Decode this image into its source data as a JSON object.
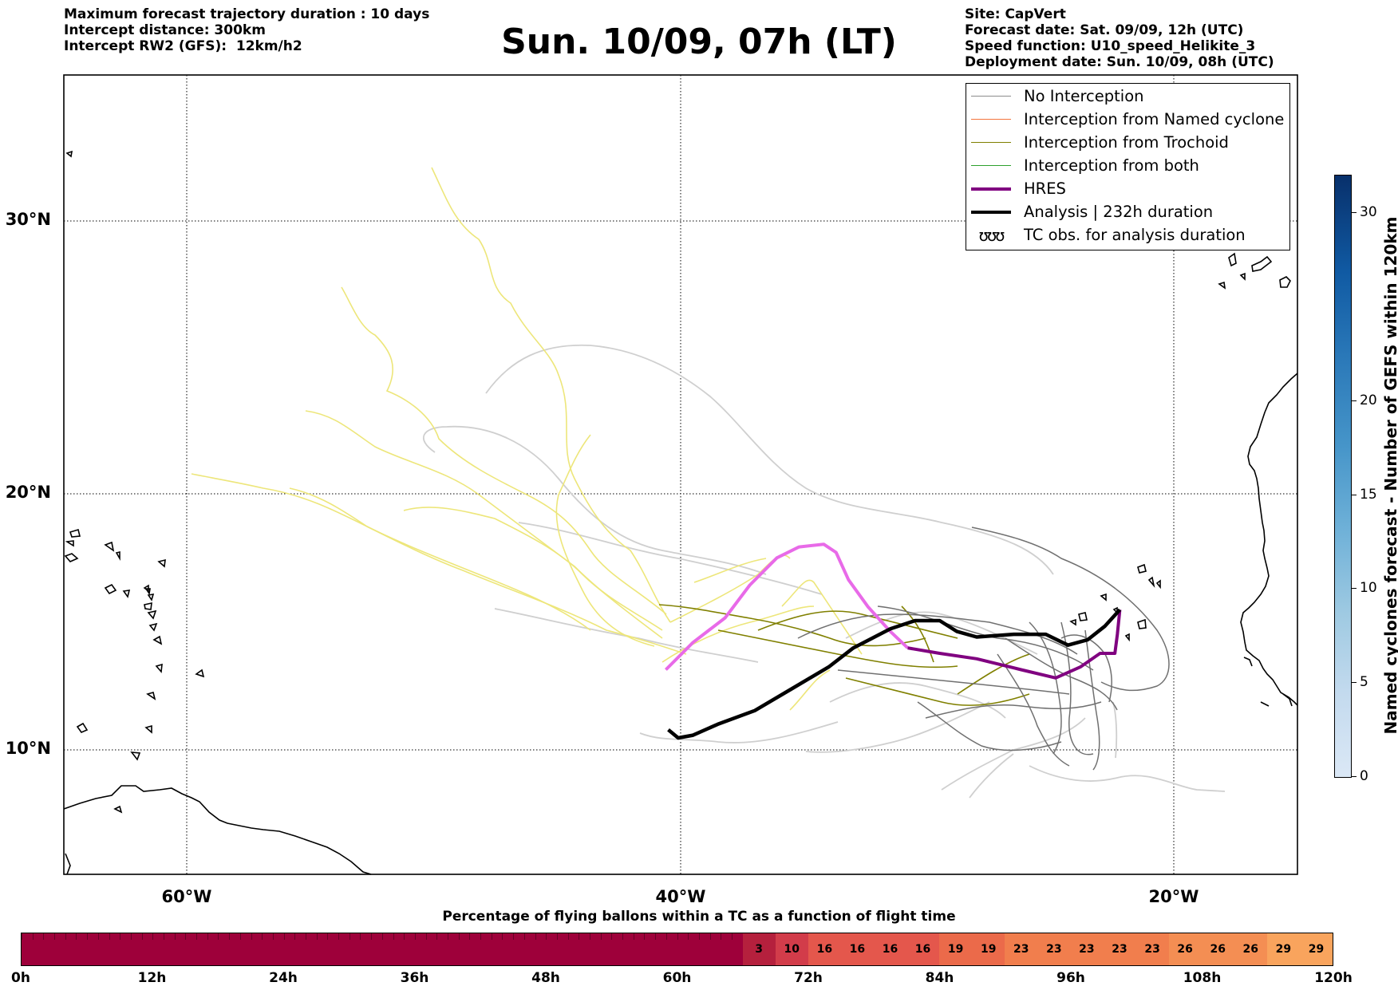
{
  "header": {
    "left": [
      "Maximum forecast trajectory duration : 10 days",
      "Intercept distance: 300km",
      "Intercept RW2 (GFS):  12km/h2"
    ],
    "title": "Sun. 10/09, 07h (LT)",
    "right": [
      "Site: CapVert",
      "Forecast date: Sat. 09/09, 12h (UTC)",
      "Speed function: U10_speed_Helikite_3",
      "Deployment date: Sun. 10/09, 08h (UTC)"
    ]
  },
  "map": {
    "lat_labels": [
      "30°N",
      "20°N",
      "10°N"
    ],
    "lon_labels": [
      "60°W",
      "40°W",
      "20°W"
    ],
    "extent": {
      "lon": [
        -65,
        -15
      ],
      "lat": [
        5,
        34.3
      ]
    }
  },
  "legend": {
    "items": [
      {
        "label": "No Interception",
        "color": "#8c8c8c",
        "style": "thin"
      },
      {
        "label": "Interception from Named cyclone",
        "color": "#f4743c",
        "style": "thin"
      },
      {
        "label": "Interception from Trochoid",
        "color": "#808000",
        "style": "thin"
      },
      {
        "label": "Interception from both",
        "color": "#2ca02c",
        "style": "thin"
      },
      {
        "label": "HRES",
        "color": "#800080",
        "style": "thick"
      },
      {
        "label": "Analysis | 232h duration",
        "color": "#000000",
        "style": "thick"
      },
      {
        "label": "TC obs. for analysis duration",
        "icon": "tc-symbol-icon",
        "symbol": "ʊʊʊ"
      }
    ]
  },
  "right_colorbar": {
    "title": "Named cyclones forecast - Number of GEFS within 120km",
    "ticks": [
      "0",
      "5",
      "10",
      "15",
      "20",
      "30"
    ],
    "tick_values": [
      0,
      5,
      10,
      15,
      20,
      30
    ],
    "max": 32
  },
  "bottom_bar": {
    "title": "Percentage of flying ballons within a TC as a function of flight time",
    "hour_labels": [
      "0h",
      "12h",
      "24h",
      "36h",
      "48h",
      "60h",
      "72h",
      "84h",
      "96h",
      "108h",
      "120h"
    ],
    "hours_max": 120,
    "segment_hours": 3,
    "segments": [
      {
        "start": 66,
        "label": "3",
        "color": "#b5203d"
      },
      {
        "start": 69,
        "label": "10",
        "color": "#d23c4a"
      },
      {
        "start": 72,
        "label": "16",
        "color": "#e4574c"
      },
      {
        "start": 75,
        "label": "16",
        "color": "#e4574c"
      },
      {
        "start": 78,
        "label": "16",
        "color": "#e4574c"
      },
      {
        "start": 81,
        "label": "16",
        "color": "#e4574c"
      },
      {
        "start": 84,
        "label": "19",
        "color": "#eb6a4a"
      },
      {
        "start": 87,
        "label": "19",
        "color": "#eb6a4a"
      },
      {
        "start": 90,
        "label": "23",
        "color": "#f17e4d"
      },
      {
        "start": 93,
        "label": "23",
        "color": "#f17e4d"
      },
      {
        "start": 96,
        "label": "23",
        "color": "#f17e4d"
      },
      {
        "start": 99,
        "label": "23",
        "color": "#f17e4d"
      },
      {
        "start": 102,
        "label": "23",
        "color": "#f17e4d"
      },
      {
        "start": 105,
        "label": "26",
        "color": "#f48e53"
      },
      {
        "start": 108,
        "label": "26",
        "color": "#f48e53"
      },
      {
        "start": 111,
        "label": "26",
        "color": "#f48e53"
      },
      {
        "start": 114,
        "label": "29",
        "color": "#f9a45d"
      },
      {
        "start": 117,
        "label": "29",
        "color": "#f9a45d"
      }
    ],
    "base_color": "#9e003a"
  },
  "tracks": {
    "analysis": {
      "color": "#000000",
      "points": [
        [
          -40.5,
          10.3
        ],
        [
          -40.1,
          10.0
        ],
        [
          -39.5,
          10.1
        ],
        [
          -38.5,
          10.5
        ],
        [
          -37.0,
          11.0
        ],
        [
          -35.5,
          11.8
        ],
        [
          -34.0,
          12.6
        ],
        [
          -33.0,
          13.3
        ],
        [
          -31.5,
          14.0
        ],
        [
          -30.5,
          14.3
        ],
        [
          -29.5,
          14.3
        ],
        [
          -28.8,
          13.9
        ],
        [
          -28.0,
          13.7
        ],
        [
          -26.5,
          13.8
        ],
        [
          -25.2,
          13.8
        ],
        [
          -24.3,
          13.4
        ],
        [
          -23.5,
          13.6
        ],
        [
          -22.8,
          14.1
        ],
        [
          -22.2,
          14.7
        ]
      ]
    },
    "hres": {
      "color_early": "#e86ae8",
      "color_late": "#800080",
      "points": [
        [
          -40.6,
          12.5
        ],
        [
          -39.5,
          13.5
        ],
        [
          -38.2,
          14.4
        ],
        [
          -37.2,
          15.6
        ],
        [
          -36.1,
          16.6
        ],
        [
          -35.2,
          17.0
        ],
        [
          -34.2,
          17.1
        ],
        [
          -33.7,
          16.8
        ],
        [
          -33.2,
          15.8
        ],
        [
          -32.4,
          14.8
        ],
        [
          -31.5,
          13.9
        ],
        [
          -30.8,
          13.3
        ],
        [
          -29.5,
          13.1
        ],
        [
          -28.0,
          12.9
        ],
        [
          -26.2,
          12.5
        ],
        [
          -24.8,
          12.2
        ],
        [
          -23.8,
          12.6
        ],
        [
          -23.0,
          13.1
        ],
        [
          -22.4,
          13.1
        ],
        [
          -22.3,
          13.8
        ],
        [
          -22.2,
          14.7
        ]
      ]
    }
  }
}
